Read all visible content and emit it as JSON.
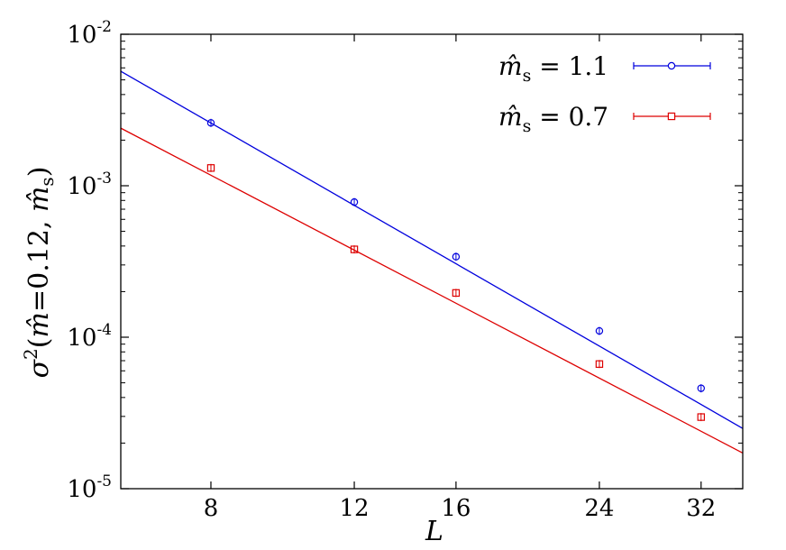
{
  "chart_data": {
    "type": "scatter",
    "title": "",
    "xlabel": "L",
    "ylabel": {
      "sigma": "σ",
      "power": "2",
      "open": "(",
      "mhat": "m̂",
      "eq": "=0.12, ",
      "mhat_s": "m̂",
      "sub_s": "s",
      "close": ")"
    },
    "x_scale": "log",
    "y_scale": "log",
    "xlim": [
      6.2,
      36
    ],
    "ylim": [
      1e-05,
      0.01
    ],
    "x_ticks": [
      8,
      12,
      16,
      24,
      32
    ],
    "x_tick_labels": [
      "8",
      "12",
      "16",
      "24",
      "32"
    ],
    "y_ticks": [
      {
        "value": 1e-05,
        "base": "10",
        "exp": "-5"
      },
      {
        "value": 0.0001,
        "base": "10",
        "exp": "-4"
      },
      {
        "value": 0.001,
        "base": "10",
        "exp": "-3"
      },
      {
        "value": 0.01,
        "base": "10",
        "exp": "-2"
      }
    ],
    "grid": false,
    "legend_position": "top-right",
    "series": [
      {
        "name_parts": {
          "m": "m̂",
          "sub": "s",
          "rest": " = 1.1"
        },
        "color": "#0000dd",
        "marker": "circle",
        "x": [
          8,
          12,
          16,
          24,
          32
        ],
        "y": [
          0.0026,
          0.00078,
          0.00034,
          0.00011,
          4.6e-05
        ],
        "fit": {
          "x": [
            6.2,
            36
          ],
          "y": [
            0.0057,
            2.5e-05
          ]
        }
      },
      {
        "name_parts": {
          "m": "m̂",
          "sub": "s",
          "rest": " = 0.7"
        },
        "color": "#dd0000",
        "marker": "square",
        "x": [
          8,
          12,
          16,
          24,
          32
        ],
        "y": [
          0.00131,
          0.00038,
          0.000196,
          6.65e-05,
          2.97e-05
        ],
        "fit": {
          "x": [
            6.2,
            36
          ],
          "y": [
            0.0024,
            1.72e-05
          ]
        }
      }
    ]
  }
}
